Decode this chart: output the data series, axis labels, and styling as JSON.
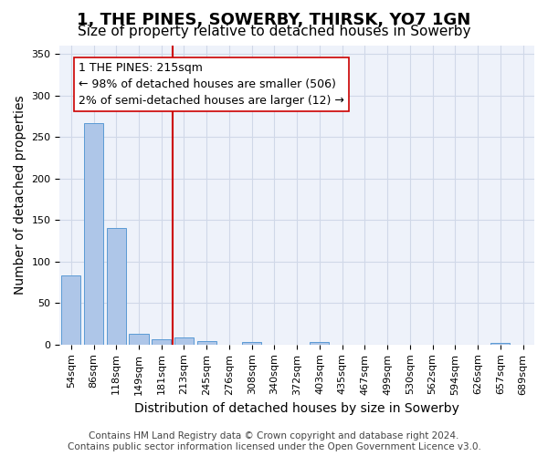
{
  "title": "1, THE PINES, SOWERBY, THIRSK, YO7 1GN",
  "subtitle": "Size of property relative to detached houses in Sowerby",
  "xlabel": "Distribution of detached houses by size in Sowerby",
  "ylabel": "Number of detached properties",
  "categories": [
    "54sqm",
    "86sqm",
    "118sqm",
    "149sqm",
    "181sqm",
    "213sqm",
    "245sqm",
    "276sqm",
    "308sqm",
    "340sqm",
    "372sqm",
    "403sqm",
    "435sqm",
    "467sqm",
    "499sqm",
    "530sqm",
    "562sqm",
    "594sqm",
    "626sqm",
    "657sqm",
    "689sqm"
  ],
  "values": [
    83,
    267,
    140,
    13,
    6,
    9,
    4,
    0,
    3,
    0,
    0,
    3,
    0,
    0,
    0,
    0,
    0,
    0,
    0,
    2,
    0
  ],
  "bar_color": "#aec6e8",
  "bar_edge_color": "#5b9bd5",
  "grid_color": "#d0d8e8",
  "background_color": "#eef2fa",
  "vline_index": 5,
  "vline_color": "#cc0000",
  "annotation_text": "1 THE PINES: 215sqm\n← 98% of detached houses are smaller (506)\n2% of semi-detached houses are larger (12) →",
  "annotation_box_color": "white",
  "annotation_box_edge": "#cc0000",
  "ylim": [
    0,
    360
  ],
  "yticks": [
    0,
    50,
    100,
    150,
    200,
    250,
    300,
    350
  ],
  "footer": "Contains HM Land Registry data © Crown copyright and database right 2024.\nContains public sector information licensed under the Open Government Licence v3.0.",
  "title_fontsize": 13,
  "subtitle_fontsize": 11,
  "xlabel_fontsize": 10,
  "ylabel_fontsize": 10,
  "tick_fontsize": 8,
  "annotation_fontsize": 9,
  "footer_fontsize": 7.5
}
